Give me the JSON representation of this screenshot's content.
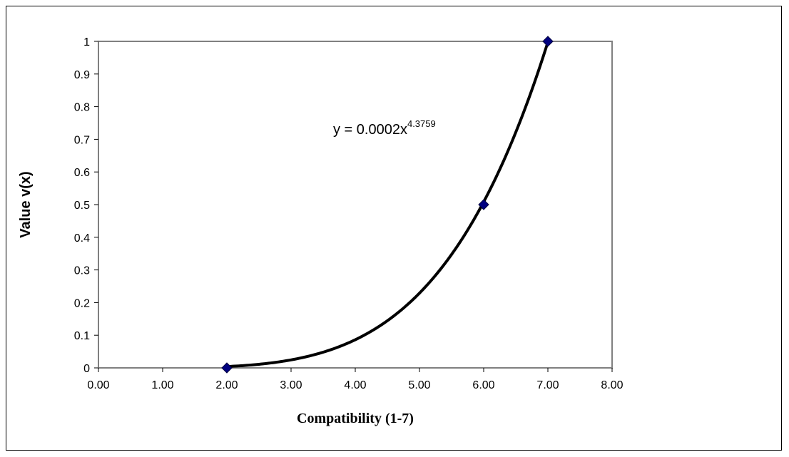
{
  "chart_data": {
    "type": "scatter",
    "title": "",
    "xlabel": "Compatibility (1-7)",
    "ylabel": "Value v(x)",
    "xlim": [
      0,
      8
    ],
    "ylim": [
      0,
      1
    ],
    "x_ticks": [
      "0.00",
      "1.00",
      "2.00",
      "3.00",
      "4.00",
      "5.00",
      "6.00",
      "7.00",
      "8.00"
    ],
    "y_ticks": [
      "0",
      "0.1",
      "0.2",
      "0.3",
      "0.4",
      "0.5",
      "0.6",
      "0.7",
      "0.8",
      "0.9",
      "1"
    ],
    "grid": false,
    "legend": "none",
    "series": [
      {
        "x": [
          2,
          6,
          7
        ],
        "y": [
          0,
          0.5,
          1
        ],
        "marker": "diamond",
        "color": "#000080"
      }
    ],
    "trendline": {
      "kind": "power",
      "coefficient": 0.0002,
      "exponent": 4.3759,
      "x_range": [
        2,
        7
      ],
      "color": "#000000"
    },
    "annotation": {
      "equation_base": "y = 0.0002x",
      "equation_exponent": "4.3759",
      "at": [
        3.0,
        0.72
      ]
    }
  }
}
